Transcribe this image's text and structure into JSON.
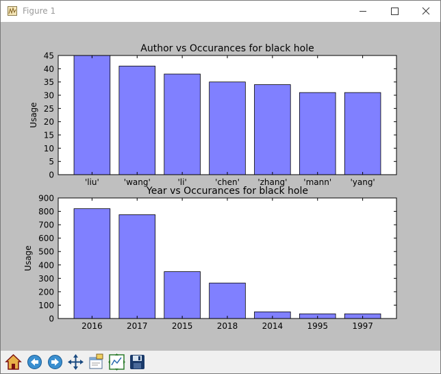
{
  "window": {
    "title": "Figure 1"
  },
  "toolbar": {
    "buttons": [
      {
        "icon": "home-icon"
      },
      {
        "icon": "back-arrow-icon"
      },
      {
        "icon": "forward-arrow-icon"
      },
      {
        "icon": "pan-move-icon"
      },
      {
        "icon": "zoom-rect-icon"
      },
      {
        "icon": "subplots-config-icon"
      },
      {
        "icon": "save-floppy-icon"
      }
    ]
  },
  "colors": {
    "bar_fill": "#8080ff",
    "bar_edge": "#000000",
    "figure_bg": "#bfbfbf",
    "axes_bg": "#ffffff"
  },
  "chart_data": [
    {
      "type": "bar",
      "title": "Author vs Occurances for black hole",
      "xlabel": "",
      "ylabel": "Usage",
      "categories": [
        "'liu'",
        "'wang'",
        "'li'",
        "'chen'",
        "'zhang'",
        "'mann'",
        "'yang'"
      ],
      "values": [
        45,
        41,
        38,
        35,
        34,
        31,
        31
      ],
      "ylim": [
        0,
        45
      ],
      "yticks": [
        0,
        5,
        10,
        15,
        20,
        25,
        30,
        35,
        40,
        45
      ],
      "grid": false
    },
    {
      "type": "bar",
      "title": "Year vs Occurances for black hole",
      "xlabel": "",
      "ylabel": "Usage",
      "categories": [
        "2016",
        "2017",
        "2015",
        "2018",
        "2014",
        "1995",
        "1997"
      ],
      "values": [
        820,
        775,
        350,
        265,
        50,
        35,
        35
      ],
      "ylim": [
        0,
        900
      ],
      "yticks": [
        0,
        100,
        200,
        300,
        400,
        500,
        600,
        700,
        800,
        900
      ],
      "grid": false
    }
  ]
}
